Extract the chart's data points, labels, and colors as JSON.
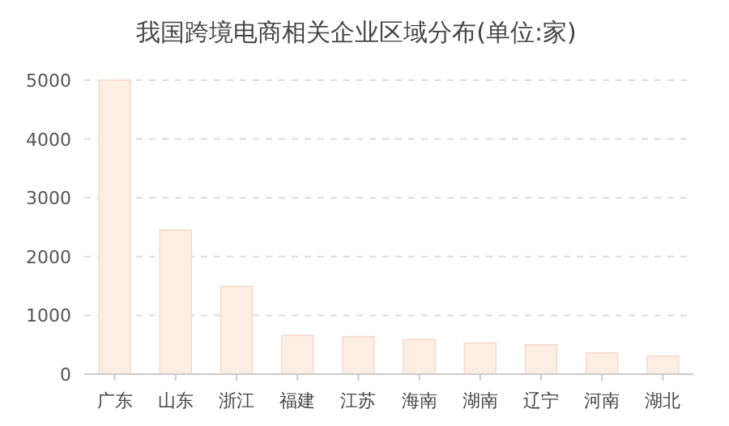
{
  "chart_data": {
    "type": "bar",
    "title": "我国跨境电商相关企业区域分布(单位:家)",
    "categories": [
      "广东",
      "山东",
      "浙江",
      "福建",
      "江苏",
      "海南",
      "湖南",
      "辽宁",
      "河南",
      "湖北"
    ],
    "values": [
      5000,
      2450,
      1490,
      660,
      640,
      590,
      530,
      500,
      360,
      310
    ],
    "color": "#fdeee4",
    "ylim": [
      0,
      5000
    ],
    "yticks": [
      0,
      1000,
      2000,
      3000,
      4000,
      5000
    ],
    "grid": "y"
  }
}
